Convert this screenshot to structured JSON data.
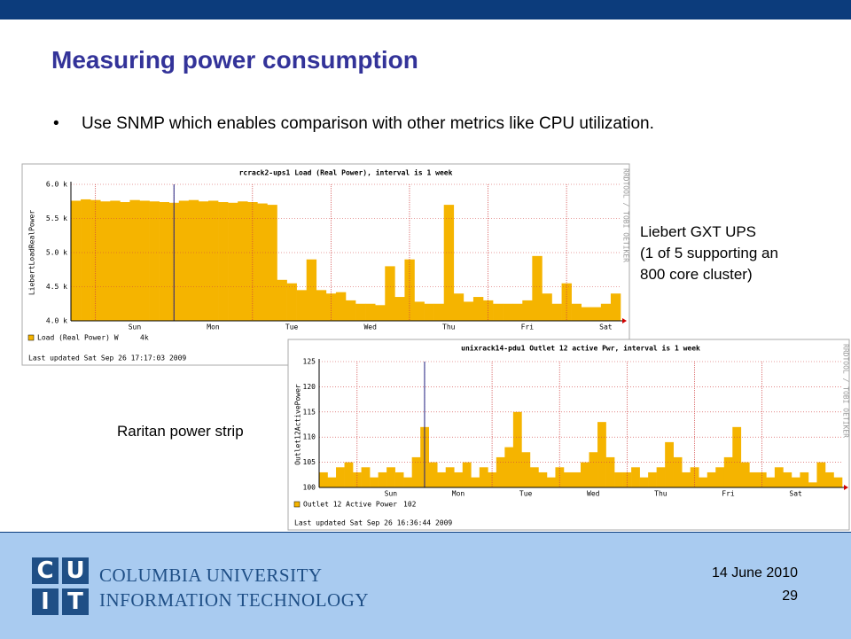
{
  "header": {
    "title": "Measuring power consumption"
  },
  "bullets": [
    "Use SNMP which enables comparison with other metrics like CPU utilization."
  ],
  "captions": {
    "ups": [
      "Liebert GXT UPS",
      "(1 of 5 supporting an",
      "800 core cluster)"
    ],
    "strip": "Raritan power strip"
  },
  "footer": {
    "date": "14 June 2010",
    "page": "29",
    "logo": {
      "letters": [
        "C",
        "U",
        "I",
        "T"
      ],
      "lines": [
        "COLUMBIA UNIVERSITY",
        "INFORMATION TECHNOLOGY"
      ]
    }
  },
  "chart_data": [
    {
      "type": "area",
      "title": "rcrack2-ups1 Load (Real Power), interval is 1 week",
      "y_label": "LiebertLoadRealPower",
      "credit": "RRDTOOL / TOBI OETIKER",
      "ylim": [
        4000,
        6000
      ],
      "yticks": [
        {
          "value": 4000,
          "label": "4.0 k"
        },
        {
          "value": 4500,
          "label": "4.5 k"
        },
        {
          "value": 5000,
          "label": "5.0 k"
        },
        {
          "value": 5500,
          "label": "5.5 k"
        },
        {
          "value": 6000,
          "label": "6.0 k"
        }
      ],
      "grid": true,
      "categories": [
        null,
        null,
        null,
        null,
        null,
        null,
        "Sun",
        null,
        null,
        null,
        null,
        null,
        null,
        null,
        "Mon",
        null,
        null,
        null,
        null,
        null,
        null,
        null,
        "Tue",
        null,
        null,
        null,
        null,
        null,
        null,
        null,
        "Wed",
        null,
        null,
        null,
        null,
        null,
        null,
        null,
        "Thu",
        null,
        null,
        null,
        null,
        null,
        null,
        null,
        "Fri",
        null,
        null,
        null,
        null,
        null,
        null,
        null,
        "Sat",
        null
      ],
      "series": [
        {
          "name": "Load (Real Power) W",
          "color": "#f5b400",
          "values": [
            5760,
            5780,
            5770,
            5750,
            5760,
            5740,
            5770,
            5760,
            5750,
            5740,
            5730,
            5760,
            5770,
            5750,
            5760,
            5740,
            5730,
            5750,
            5740,
            5720,
            5700,
            4600,
            4550,
            4450,
            4900,
            4450,
            4400,
            4420,
            4300,
            4250,
            4250,
            4230,
            4800,
            4350,
            4900,
            4280,
            4250,
            4250,
            5700,
            4400,
            4280,
            4350,
            4300,
            4250,
            4250,
            4250,
            4300,
            4950,
            4400,
            4250,
            4550,
            4250,
            4200,
            4200,
            4250,
            4400
          ]
        }
      ],
      "current": {
        "value": 4000,
        "label": "4k"
      },
      "last_updated": "Last updated Sat Sep 26 17:17:03 2009"
    },
    {
      "type": "area",
      "title": "unixrack14-pdu1 Outlet 12 active Pwr, interval is 1 week",
      "y_label": "Outlet12ActivePower",
      "credit": "RRDTOOL / TOBI OETIKER",
      "ylim": [
        100,
        125
      ],
      "yticks": [
        100,
        105,
        110,
        115,
        120,
        125
      ],
      "grid": true,
      "categories": [
        null,
        null,
        null,
        null,
        null,
        null,
        null,
        null,
        "Sun",
        null,
        null,
        null,
        null,
        null,
        null,
        null,
        "Mon",
        null,
        null,
        null,
        null,
        null,
        null,
        null,
        "Tue",
        null,
        null,
        null,
        null,
        null,
        null,
        null,
        "Wed",
        null,
        null,
        null,
        null,
        null,
        null,
        null,
        "Thu",
        null,
        null,
        null,
        null,
        null,
        null,
        null,
        "Fri",
        null,
        null,
        null,
        null,
        null,
        null,
        null,
        "Sat",
        null,
        null,
        null,
        null,
        null
      ],
      "series": [
        {
          "name": "Outlet 12 Active Power",
          "color": "#f5b400",
          "values": [
            103,
            102,
            104,
            105,
            103,
            104,
            102,
            103,
            104,
            103,
            102,
            106,
            112,
            105,
            103,
            104,
            103,
            105,
            102,
            104,
            103,
            106,
            108,
            115,
            107,
            104,
            103,
            102,
            104,
            103,
            103,
            105,
            107,
            113,
            106,
            103,
            103,
            104,
            102,
            103,
            104,
            109,
            106,
            103,
            104,
            102,
            103,
            104,
            106,
            112,
            105,
            103,
            103,
            102,
            104,
            103,
            102,
            103,
            101,
            105,
            103,
            102
          ]
        }
      ],
      "current": 102,
      "last_updated": "Last updated Sat Sep 26 16:36:44 2009"
    }
  ]
}
